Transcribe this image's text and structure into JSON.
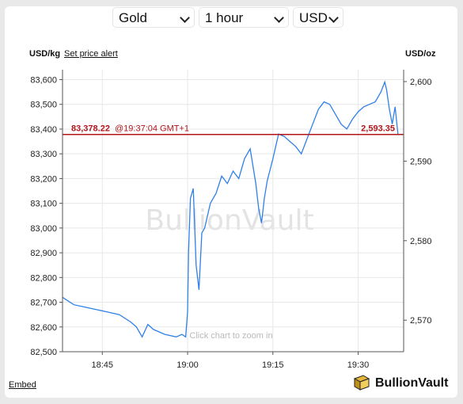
{
  "controls": {
    "metal": "Gold",
    "period": "1 hour",
    "currency": "USD"
  },
  "header": {
    "left_unit": "USD/kg",
    "set_alert": "Set price alert",
    "right_unit": "USD/oz"
  },
  "footer": {
    "embed": "Embed",
    "brand": "BullionVault"
  },
  "colors": {
    "line": "#2f80ea",
    "current_price": "#b3151b",
    "grid": "#e7e7e7"
  },
  "chart_data": {
    "type": "line",
    "title": "",
    "watermark": "BullionVault",
    "hint": "Click chart to zoom in",
    "xlabel": "",
    "ylabel": "USD/kg",
    "ylabel_right": "USD/oz",
    "x_ticks": [
      "18:45",
      "19:00",
      "19:15",
      "19:30"
    ],
    "y_ticks_left": [
      "83,600",
      "83,500",
      "83,400",
      "83,300",
      "83,200",
      "83,100",
      "83,000",
      "82,900",
      "82,800",
      "82,700",
      "82,600",
      "82,500"
    ],
    "y_ticks_right": [
      "2,600",
      "2,590",
      "2,580",
      "2,570"
    ],
    "ylim": [
      82500,
      83640
    ],
    "xlim": [
      "18:38",
      "19:38"
    ],
    "grid": true,
    "current_price": {
      "kg": "83,378.22",
      "time": "@19:37:04 GMT+1",
      "oz": "2,593.35",
      "value_kg": 83378.22
    },
    "series": [
      {
        "x": [
          "18:38",
          "18:40",
          "18:42",
          "18:44",
          "18:46",
          "18:48",
          "18:50",
          "18:51",
          "18:52",
          "18:53",
          "18:54",
          "18:56",
          "18:58",
          "18:59",
          "18:59:40",
          "19:00",
          "19:00:10",
          "19:00:30",
          "19:01",
          "19:01:30",
          "19:02",
          "19:02:30",
          "19:03",
          "19:04",
          "19:05",
          "19:06",
          "19:07",
          "19:08",
          "19:09",
          "19:10",
          "19:11",
          "19:12",
          "19:12:30",
          "19:13",
          "19:13:30",
          "19:14",
          "19:15",
          "19:16",
          "19:17",
          "19:18",
          "19:19",
          "19:20",
          "19:21",
          "19:22",
          "19:23",
          "19:24",
          "19:25",
          "19:26",
          "19:27",
          "19:28",
          "19:29",
          "19:30",
          "19:31",
          "19:32",
          "19:33",
          "19:34",
          "19:34:40",
          "19:35",
          "19:35:30",
          "19:36",
          "19:36:30",
          "19:37"
        ],
        "values": [
          82720,
          82690,
          82680,
          82670,
          82660,
          82650,
          82620,
          82600,
          82560,
          82610,
          82590,
          82570,
          82560,
          82570,
          82560,
          82660,
          82900,
          83120,
          83160,
          82850,
          82750,
          82980,
          83000,
          83100,
          83140,
          83210,
          83180,
          83230,
          83200,
          83280,
          83320,
          83180,
          83080,
          83020,
          83120,
          83190,
          83280,
          83380,
          83370,
          83350,
          83330,
          83300,
          83360,
          83420,
          83480,
          83510,
          83500,
          83460,
          83420,
          83400,
          83440,
          83470,
          83490,
          83500,
          83510,
          83550,
          83590,
          83560,
          83480,
          83420,
          83490,
          83380
        ]
      }
    ]
  }
}
